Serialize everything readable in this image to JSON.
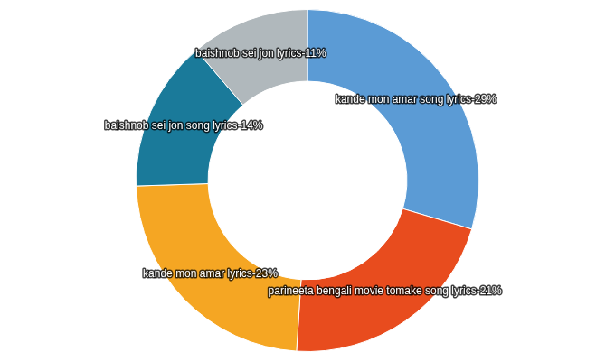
{
  "chart_data": {
    "type": "donut",
    "categories": [
      "kande mon amar song lyrics",
      "parineeta bengali movie tomake song lyrics",
      "kande mon amar lyrics",
      "baishnob sei jon song lyrics",
      "baishnob sei jon lyrics"
    ],
    "values": [
      29,
      21,
      23,
      14,
      11
    ],
    "colors": [
      "#5b9bd5",
      "#e84c1e",
      "#f5a623",
      "#1a7a9a",
      "#b0b8bc"
    ],
    "data_labels": true,
    "value_labels": [
      "kande mon amar song lyrics-29%",
      "parineeta bengali movie tomake song lyrics-21%",
      "kande mon amar lyrics-23%",
      "baishnob sei jon song lyrics-14%",
      "baishnob sei jon lyrics-11%"
    ]
  }
}
